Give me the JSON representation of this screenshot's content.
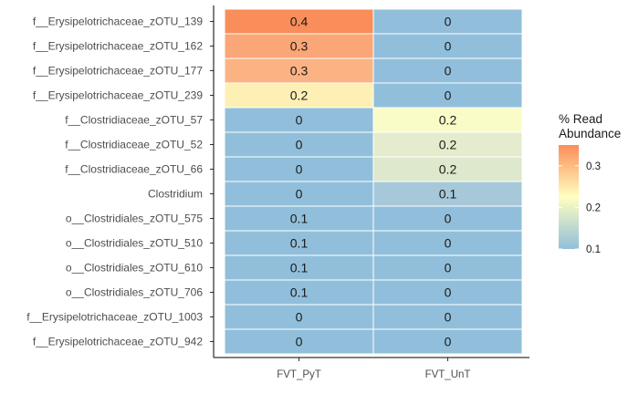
{
  "chart_data": {
    "type": "heatmap",
    "title": "",
    "xlabel": "",
    "ylabel": "",
    "x_categories": [
      "FVT_PyT",
      "FVT_UnT"
    ],
    "y_categories": [
      "f__Erysipelotrichaceae_zOTU_139",
      "f__Erysipelotrichaceae_zOTU_162",
      "f__Erysipelotrichaceae_zOTU_177",
      "f__Erysipelotrichaceae_zOTU_239",
      "f__Clostridiaceae_zOTU_57",
      "f__Clostridiaceae_zOTU_52",
      "f__Clostridiaceae_zOTU_66",
      "Clostridium",
      "o__Clostridiales_zOTU_575",
      "o__Clostridiales_zOTU_510",
      "o__Clostridiales_zOTU_610",
      "o__Clostridiales_zOTU_706",
      "f__Erysipelotrichaceae_zOTU_1003",
      "f__Erysipelotrichaceae_zOTU_942"
    ],
    "values": [
      [
        0.4,
        0
      ],
      [
        0.3,
        0
      ],
      [
        0.3,
        0
      ],
      [
        0.2,
        0
      ],
      [
        0,
        0.2
      ],
      [
        0,
        0.2
      ],
      [
        0,
        0.2
      ],
      [
        0,
        0.1
      ],
      [
        0.1,
        0
      ],
      [
        0.1,
        0
      ],
      [
        0.1,
        0
      ],
      [
        0.1,
        0
      ],
      [
        0,
        0
      ],
      [
        0,
        0
      ]
    ],
    "cell_labels": [
      [
        "0.4",
        "0"
      ],
      [
        "0.3",
        "0"
      ],
      [
        "0.3",
        "0"
      ],
      [
        "0.2",
        "0"
      ],
      [
        "0",
        "0.2"
      ],
      [
        "0",
        "0.2"
      ],
      [
        "0",
        "0.2"
      ],
      [
        "0",
        "0.1"
      ],
      [
        "0.1",
        "0"
      ],
      [
        "0.1",
        "0"
      ],
      [
        "0.1",
        "0"
      ],
      [
        "0.1",
        "0"
      ],
      [
        "0",
        "0"
      ],
      [
        "0",
        "0"
      ]
    ],
    "cell_colors": [
      [
        "#f98e5a",
        "#91bfdb"
      ],
      [
        "#fba676",
        "#91bfdb"
      ],
      [
        "#fcb384",
        "#91bfdb"
      ],
      [
        "#fef0b5",
        "#91bfdb"
      ],
      [
        "#91bfdb",
        "#fafcc8"
      ],
      [
        "#91bfdb",
        "#e4eccd"
      ],
      [
        "#91bfdb",
        "#dde8cc"
      ],
      [
        "#91bfdb",
        "#a6c8d8"
      ],
      [
        "#91bfdb",
        "#91bfdb"
      ],
      [
        "#91bfdb",
        "#91bfdb"
      ],
      [
        "#91bfdb",
        "#91bfdb"
      ],
      [
        "#91bfdb",
        "#91bfdb"
      ],
      [
        "#91bfdb",
        "#91bfdb"
      ],
      [
        "#91bfdb",
        "#91bfdb"
      ]
    ],
    "legend": {
      "title_lines": [
        "% Read",
        "Abundance"
      ],
      "ticks": [
        "0.3",
        "0.2",
        "0.1"
      ],
      "tick_values": [
        0.3,
        0.2,
        0.1
      ],
      "range": [
        0.1,
        0.35
      ],
      "gradient_colors": [
        "#91bfdb",
        "#ffffbf",
        "#fc8d59"
      ],
      "placement": "right"
    }
  }
}
